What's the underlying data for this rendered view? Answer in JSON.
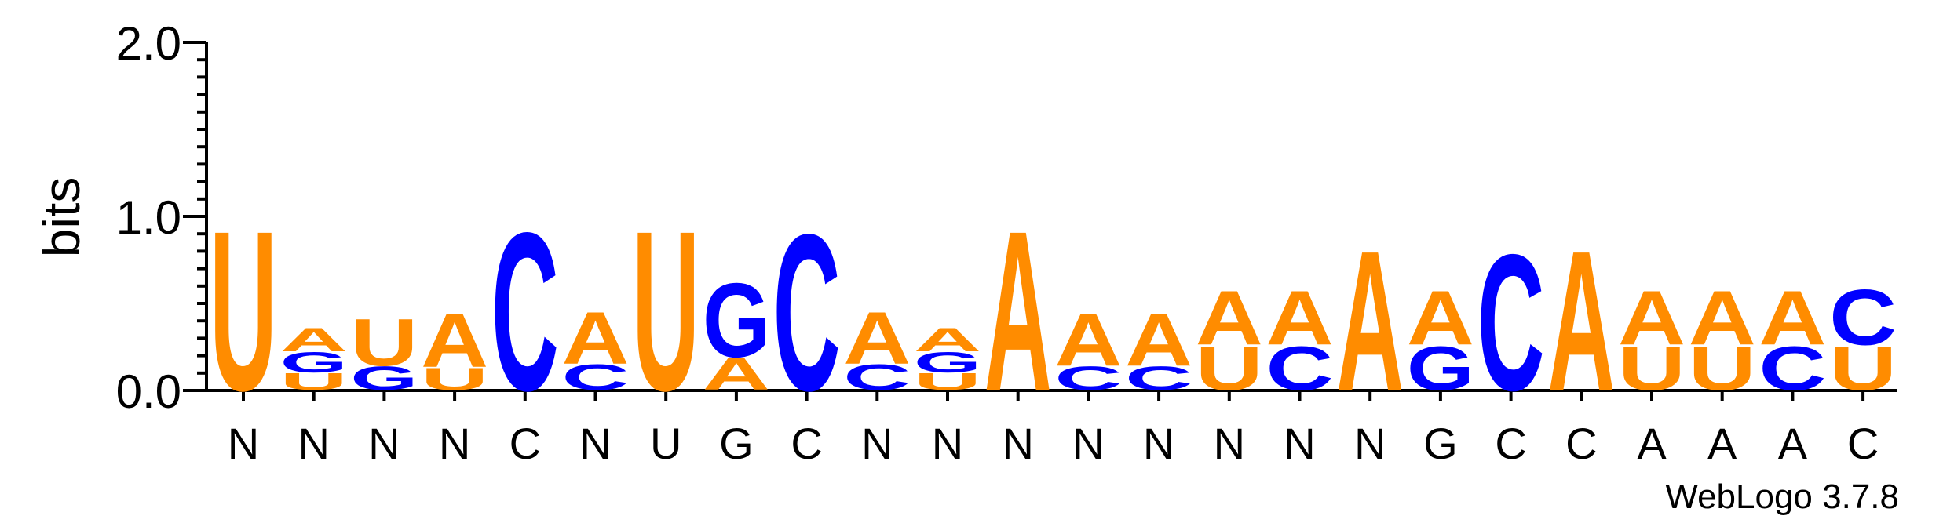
{
  "chart_data": {
    "type": "sequence-logo",
    "ylabel": "bits",
    "ylim": [
      0,
      2.0
    ],
    "y_ticks": [
      {
        "value": 0.0,
        "label": "0.0"
      },
      {
        "value": 1.0,
        "label": "1.0"
      },
      {
        "value": 2.0,
        "label": "2.0"
      }
    ],
    "y_minor_step": 0.1,
    "colors": {
      "A": "#FF8C00",
      "U": "#FF8C00",
      "C": "#0000FF",
      "G": "#0000FF"
    },
    "positions": [
      {
        "label": "N",
        "stack": [
          {
            "letter": "U",
            "height": 0.95
          }
        ]
      },
      {
        "label": "N",
        "stack": [
          {
            "letter": "U",
            "height": 0.1
          },
          {
            "letter": "G",
            "height": 0.12
          },
          {
            "letter": "A",
            "height": 0.14
          }
        ]
      },
      {
        "label": "N",
        "stack": [
          {
            "letter": "G",
            "height": 0.14
          },
          {
            "letter": "U",
            "height": 0.28
          }
        ]
      },
      {
        "label": "N",
        "stack": [
          {
            "letter": "U",
            "height": 0.13
          },
          {
            "letter": "A",
            "height": 0.32
          }
        ]
      },
      {
        "label": "C",
        "stack": [
          {
            "letter": "C",
            "height": 0.94
          }
        ]
      },
      {
        "label": "N",
        "stack": [
          {
            "letter": "C",
            "height": 0.15
          },
          {
            "letter": "A",
            "height": 0.31
          }
        ]
      },
      {
        "label": "U",
        "stack": [
          {
            "letter": "U",
            "height": 0.95
          }
        ]
      },
      {
        "label": "G",
        "stack": [
          {
            "letter": "A",
            "height": 0.19
          },
          {
            "letter": "G",
            "height": 0.44
          }
        ]
      },
      {
        "label": "C",
        "stack": [
          {
            "letter": "C",
            "height": 0.93
          }
        ]
      },
      {
        "label": "N",
        "stack": [
          {
            "letter": "C",
            "height": 0.15
          },
          {
            "letter": "A",
            "height": 0.31
          }
        ]
      },
      {
        "label": "N",
        "stack": [
          {
            "letter": "U",
            "height": 0.1
          },
          {
            "letter": "G",
            "height": 0.12
          },
          {
            "letter": "A",
            "height": 0.14
          }
        ]
      },
      {
        "label": "N",
        "stack": [
          {
            "letter": "A",
            "height": 0.95
          }
        ]
      },
      {
        "label": "N",
        "stack": [
          {
            "letter": "C",
            "height": 0.14
          },
          {
            "letter": "A",
            "height": 0.31
          }
        ]
      },
      {
        "label": "N",
        "stack": [
          {
            "letter": "C",
            "height": 0.14
          },
          {
            "letter": "A",
            "height": 0.31
          }
        ]
      },
      {
        "label": "N",
        "stack": [
          {
            "letter": "U",
            "height": 0.26
          },
          {
            "letter": "A",
            "height": 0.32
          }
        ]
      },
      {
        "label": "N",
        "stack": [
          {
            "letter": "C",
            "height": 0.26
          },
          {
            "letter": "A",
            "height": 0.32
          }
        ]
      },
      {
        "label": "N",
        "stack": [
          {
            "letter": "A",
            "height": 0.83
          }
        ]
      },
      {
        "label": "G",
        "stack": [
          {
            "letter": "G",
            "height": 0.26
          },
          {
            "letter": "A",
            "height": 0.32
          }
        ]
      },
      {
        "label": "C",
        "stack": [
          {
            "letter": "C",
            "height": 0.81
          }
        ]
      },
      {
        "label": "C",
        "stack": [
          {
            "letter": "A",
            "height": 0.83
          }
        ]
      },
      {
        "label": "A",
        "stack": [
          {
            "letter": "U",
            "height": 0.26
          },
          {
            "letter": "A",
            "height": 0.32
          }
        ]
      },
      {
        "label": "A",
        "stack": [
          {
            "letter": "U",
            "height": 0.26
          },
          {
            "letter": "A",
            "height": 0.32
          }
        ]
      },
      {
        "label": "A",
        "stack": [
          {
            "letter": "C",
            "height": 0.26
          },
          {
            "letter": "A",
            "height": 0.32
          }
        ]
      },
      {
        "label": "C",
        "stack": [
          {
            "letter": "U",
            "height": 0.26
          },
          {
            "letter": "C",
            "height": 0.33
          }
        ]
      }
    ]
  },
  "footer": {
    "credit": "WebLogo 3.7.8"
  }
}
